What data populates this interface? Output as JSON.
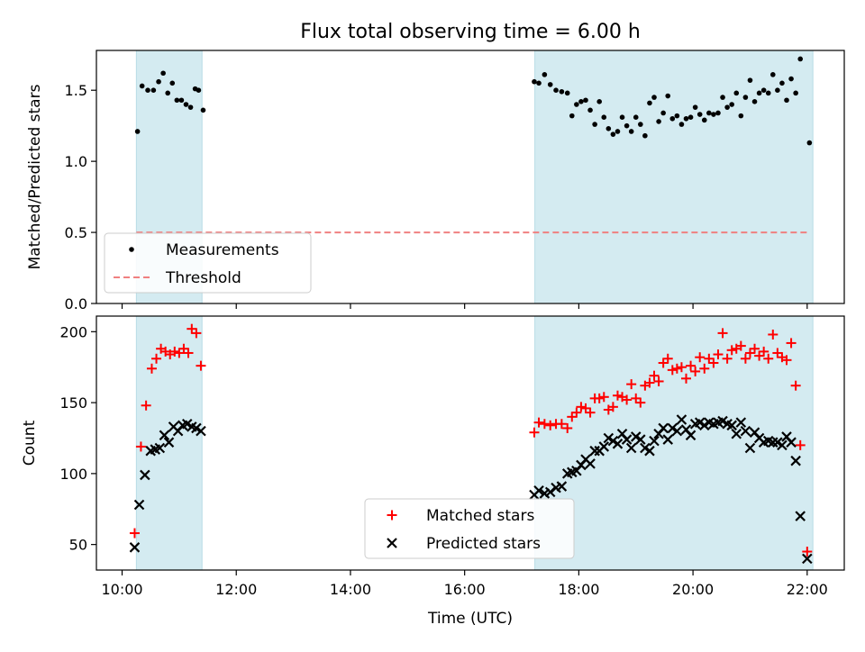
{
  "chart_data": {
    "title": "Flux total observing time = 6.00 h",
    "xlabel": "Time (UTC)",
    "x_unit": "hours UTC",
    "xlim": [
      9.55,
      22.65
    ],
    "x_ticks": [
      {
        "value": 10,
        "label": "10:00"
      },
      {
        "value": 12,
        "label": "12:00"
      },
      {
        "value": 14,
        "label": "14:00"
      },
      {
        "value": 16,
        "label": "16:00"
      },
      {
        "value": 18,
        "label": "18:00"
      },
      {
        "value": 20,
        "label": "20:00"
      },
      {
        "value": 22,
        "label": "22:00"
      }
    ],
    "shaded_intervals": [
      [
        10.25,
        11.4
      ],
      [
        17.23,
        22.1
      ]
    ],
    "shade_color": "#d4ebf1",
    "panels": [
      {
        "type": "scatter",
        "ylabel": "Matched/Predicted stars",
        "ylim": [
          0,
          1.78
        ],
        "y_ticks": [
          {
            "value": 0,
            "label": "0.0"
          },
          {
            "value": 0.5,
            "label": "0.5"
          },
          {
            "value": 1.0,
            "label": "1.0"
          },
          {
            "value": 1.5,
            "label": "1.5"
          }
        ],
        "legend_position": "lower-left",
        "series": [
          {
            "name": "Measurements",
            "marker": "dot",
            "color": "#000000",
            "points": [
              [
                10.27,
                1.21
              ],
              [
                10.35,
                1.53
              ],
              [
                10.45,
                1.5
              ],
              [
                10.55,
                1.5
              ],
              [
                10.64,
                1.56
              ],
              [
                10.72,
                1.62
              ],
              [
                10.8,
                1.48
              ],
              [
                10.88,
                1.55
              ],
              [
                10.96,
                1.43
              ],
              [
                11.04,
                1.43
              ],
              [
                11.12,
                1.4
              ],
              [
                11.2,
                1.38
              ],
              [
                11.28,
                1.51
              ],
              [
                11.34,
                1.5
              ],
              [
                11.42,
                1.36
              ],
              [
                17.22,
                1.56
              ],
              [
                17.3,
                1.55
              ],
              [
                17.4,
                1.61
              ],
              [
                17.5,
                1.54
              ],
              [
                17.6,
                1.5
              ],
              [
                17.7,
                1.49
              ],
              [
                17.8,
                1.48
              ],
              [
                17.88,
                1.32
              ],
              [
                17.96,
                1.4
              ],
              [
                18.04,
                1.42
              ],
              [
                18.12,
                1.43
              ],
              [
                18.2,
                1.36
              ],
              [
                18.28,
                1.26
              ],
              [
                18.36,
                1.42
              ],
              [
                18.44,
                1.31
              ],
              [
                18.52,
                1.23
              ],
              [
                18.6,
                1.19
              ],
              [
                18.68,
                1.21
              ],
              [
                18.76,
                1.31
              ],
              [
                18.84,
                1.25
              ],
              [
                18.92,
                1.21
              ],
              [
                19.0,
                1.31
              ],
              [
                19.08,
                1.26
              ],
              [
                19.16,
                1.18
              ],
              [
                19.24,
                1.41
              ],
              [
                19.32,
                1.45
              ],
              [
                19.4,
                1.28
              ],
              [
                19.48,
                1.34
              ],
              [
                19.56,
                1.46
              ],
              [
                19.64,
                1.3
              ],
              [
                19.72,
                1.32
              ],
              [
                19.8,
                1.26
              ],
              [
                19.88,
                1.3
              ],
              [
                19.96,
                1.31
              ],
              [
                20.04,
                1.38
              ],
              [
                20.12,
                1.33
              ],
              [
                20.2,
                1.29
              ],
              [
                20.28,
                1.34
              ],
              [
                20.36,
                1.33
              ],
              [
                20.44,
                1.34
              ],
              [
                20.52,
                1.45
              ],
              [
                20.6,
                1.38
              ],
              [
                20.68,
                1.4
              ],
              [
                20.76,
                1.48
              ],
              [
                20.84,
                1.32
              ],
              [
                20.92,
                1.45
              ],
              [
                21.0,
                1.57
              ],
              [
                21.08,
                1.42
              ],
              [
                21.16,
                1.48
              ],
              [
                21.24,
                1.5
              ],
              [
                21.32,
                1.48
              ],
              [
                21.4,
                1.61
              ],
              [
                21.48,
                1.5
              ],
              [
                21.56,
                1.55
              ],
              [
                21.64,
                1.43
              ],
              [
                21.72,
                1.58
              ],
              [
                21.8,
                1.48
              ],
              [
                21.88,
                1.72
              ],
              [
                22.04,
                1.13
              ]
            ]
          },
          {
            "name": "Threshold",
            "marker": "dashed-line",
            "color": "#f08080",
            "points": [
              [
                10.25,
                0.5
              ],
              [
                22.05,
                0.5
              ]
            ]
          }
        ]
      },
      {
        "type": "scatter",
        "ylabel": "Count",
        "ylim": [
          32,
          211
        ],
        "y_ticks": [
          {
            "value": 50,
            "label": "50"
          },
          {
            "value": 100,
            "label": "100"
          },
          {
            "value": 150,
            "label": "150"
          },
          {
            "value": 200,
            "label": "200"
          }
        ],
        "legend_position": "lower-center",
        "series": [
          {
            "name": "Matched stars",
            "marker": "plus",
            "color": "#ff0000",
            "points": [
              [
                10.22,
                58
              ],
              [
                10.33,
                119
              ],
              [
                10.42,
                148
              ],
              [
                10.52,
                174
              ],
              [
                10.6,
                181
              ],
              [
                10.68,
                188
              ],
              [
                10.76,
                186
              ],
              [
                10.84,
                184
              ],
              [
                10.92,
                186
              ],
              [
                11.0,
                185
              ],
              [
                11.08,
                188
              ],
              [
                11.16,
                185
              ],
              [
                11.22,
                202
              ],
              [
                11.3,
                199
              ],
              [
                11.38,
                176
              ],
              [
                17.22,
                129
              ],
              [
                17.3,
                136
              ],
              [
                17.4,
                135
              ],
              [
                17.5,
                134
              ],
              [
                17.6,
                135
              ],
              [
                17.7,
                135
              ],
              [
                17.8,
                132
              ],
              [
                17.88,
                140
              ],
              [
                17.96,
                143
              ],
              [
                18.04,
                147
              ],
              [
                18.12,
                146
              ],
              [
                18.2,
                143
              ],
              [
                18.28,
                153
              ],
              [
                18.36,
                153
              ],
              [
                18.44,
                154
              ],
              [
                18.52,
                145
              ],
              [
                18.6,
                147
              ],
              [
                18.68,
                155
              ],
              [
                18.76,
                154
              ],
              [
                18.84,
                152
              ],
              [
                18.92,
                163
              ],
              [
                19.0,
                153
              ],
              [
                19.08,
                150
              ],
              [
                19.16,
                162
              ],
              [
                19.24,
                164
              ],
              [
                19.32,
                169
              ],
              [
                19.4,
                165
              ],
              [
                19.48,
                178
              ],
              [
                19.56,
                181
              ],
              [
                19.64,
                173
              ],
              [
                19.72,
                174
              ],
              [
                19.8,
                175
              ],
              [
                19.88,
                167
              ],
              [
                19.96,
                176
              ],
              [
                20.04,
                172
              ],
              [
                20.12,
                182
              ],
              [
                20.2,
                174
              ],
              [
                20.28,
                181
              ],
              [
                20.36,
                178
              ],
              [
                20.44,
                184
              ],
              [
                20.52,
                199
              ],
              [
                20.6,
                181
              ],
              [
                20.68,
                187
              ],
              [
                20.76,
                188
              ],
              [
                20.84,
                190
              ],
              [
                20.92,
                181
              ],
              [
                21.0,
                185
              ],
              [
                21.08,
                188
              ],
              [
                21.16,
                183
              ],
              [
                21.24,
                186
              ],
              [
                21.32,
                181
              ],
              [
                21.4,
                198
              ],
              [
                21.48,
                185
              ],
              [
                21.56,
                182
              ],
              [
                21.64,
                180
              ],
              [
                21.72,
                192
              ],
              [
                21.8,
                162
              ],
              [
                21.88,
                120
              ],
              [
                22.0,
                45
              ]
            ]
          },
          {
            "name": "Predicted stars",
            "marker": "x",
            "color": "#000000",
            "points": [
              [
                10.22,
                48
              ],
              [
                10.3,
                78
              ],
              [
                10.4,
                99
              ],
              [
                10.5,
                116
              ],
              [
                10.58,
                117
              ],
              [
                10.66,
                118
              ],
              [
                10.74,
                127
              ],
              [
                10.82,
                122
              ],
              [
                10.9,
                133
              ],
              [
                10.98,
                130
              ],
              [
                11.06,
                134
              ],
              [
                11.14,
                135
              ],
              [
                11.22,
                133
              ],
              [
                11.3,
                132
              ],
              [
                11.38,
                130
              ],
              [
                17.22,
                85
              ],
              [
                17.3,
                88
              ],
              [
                17.4,
                86
              ],
              [
                17.5,
                87
              ],
              [
                17.6,
                90
              ],
              [
                17.7,
                91
              ],
              [
                17.8,
                100
              ],
              [
                17.88,
                101
              ],
              [
                17.96,
                102
              ],
              [
                18.04,
                106
              ],
              [
                18.12,
                110
              ],
              [
                18.2,
                107
              ],
              [
                18.28,
                116
              ],
              [
                18.36,
                116
              ],
              [
                18.44,
                119
              ],
              [
                18.52,
                125
              ],
              [
                18.6,
                123
              ],
              [
                18.68,
                121
              ],
              [
                18.76,
                128
              ],
              [
                18.84,
                124
              ],
              [
                18.92,
                118
              ],
              [
                19.0,
                126
              ],
              [
                19.08,
                124
              ],
              [
                19.16,
                118
              ],
              [
                19.24,
                116
              ],
              [
                19.32,
                123
              ],
              [
                19.4,
                128
              ],
              [
                19.48,
                132
              ],
              [
                19.56,
                124
              ],
              [
                19.64,
                132
              ],
              [
                19.72,
                130
              ],
              [
                19.8,
                138
              ],
              [
                19.88,
                131
              ],
              [
                19.96,
                127
              ],
              [
                20.04,
                135
              ],
              [
                20.12,
                136
              ],
              [
                20.2,
                134
              ],
              [
                20.28,
                136
              ],
              [
                20.36,
                135
              ],
              [
                20.44,
                136
              ],
              [
                20.52,
                137
              ],
              [
                20.6,
                135
              ],
              [
                20.68,
                134
              ],
              [
                20.76,
                128
              ],
              [
                20.84,
                136
              ],
              [
                20.92,
                130
              ],
              [
                21.0,
                118
              ],
              [
                21.08,
                129
              ],
              [
                21.16,
                125
              ],
              [
                21.24,
                122
              ],
              [
                21.32,
                123
              ],
              [
                21.4,
                122
              ],
              [
                21.48,
                122
              ],
              [
                21.56,
                120
              ],
              [
                21.64,
                126
              ],
              [
                21.72,
                122
              ],
              [
                21.8,
                109
              ],
              [
                21.88,
                70
              ],
              [
                22.0,
                40
              ]
            ]
          }
        ]
      }
    ]
  }
}
